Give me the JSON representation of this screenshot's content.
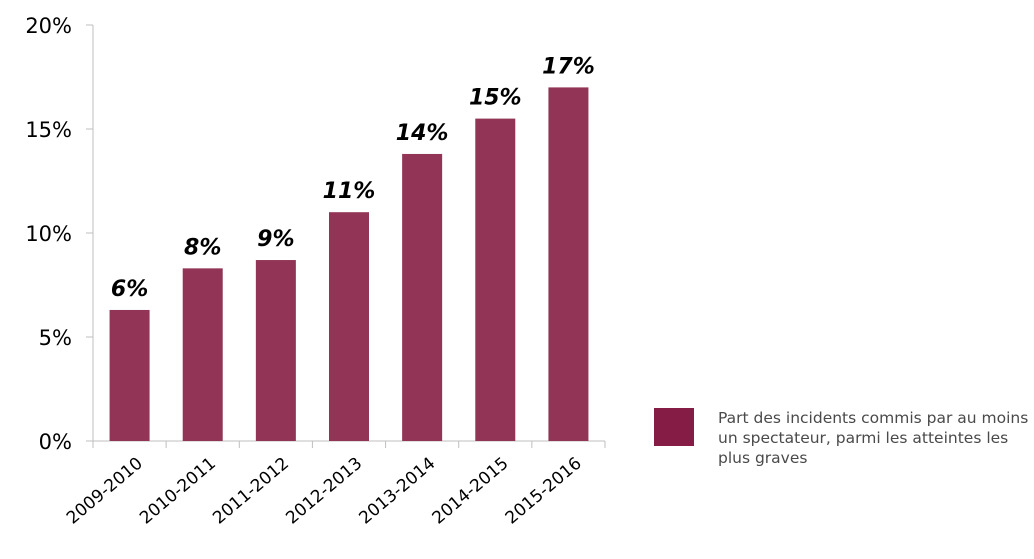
{
  "chart_data": {
    "type": "bar",
    "categories": [
      "2009-2010",
      "2010-2011",
      "2011-2012",
      "2012-2013",
      "2013-2014",
      "2014-2015",
      "2015-2016"
    ],
    "series": [
      {
        "name": "Part des incidents commis par au moins un spectateur, parmi les atteintes les plus graves",
        "values": [
          6.3,
          8.3,
          8.7,
          11.0,
          13.8,
          15.5,
          17.0
        ],
        "data_labels": [
          "6%",
          "8%",
          "9%",
          "11%",
          "14%",
          "15%",
          "17%"
        ]
      }
    ],
    "ylim": [
      0,
      20
    ],
    "yticks": [
      0,
      5,
      10,
      15,
      20
    ],
    "ytick_labels": [
      "0%",
      "5%",
      "10%",
      "15%",
      "20%"
    ],
    "title": "",
    "xlabel": "",
    "ylabel": "",
    "grid": false,
    "legend_position": "right",
    "bar_color": "#913455",
    "legend_swatch_color": "#851c46",
    "axis_color": "#bfbfbf",
    "text_color": "#000000"
  },
  "legend": {
    "label": "Part des incidents commis par au moins un spectateur, parmi les atteintes les plus graves"
  }
}
